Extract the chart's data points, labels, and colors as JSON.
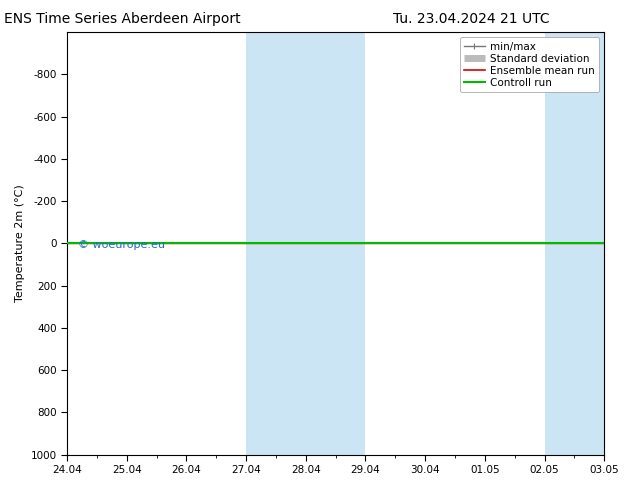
{
  "title_left": "ENS Time Series Aberdeen Airport",
  "title_right": "Tu. 23.04.2024 21 UTC",
  "ylabel": "Temperature 2m (°C)",
  "watermark": "© woeurope.eu",
  "ylim_top": -1000,
  "ylim_bottom": 1000,
  "ytick_values": [
    -800,
    -600,
    -400,
    -200,
    0,
    200,
    400,
    600,
    800,
    1000
  ],
  "x_tick_labels": [
    "24.04",
    "25.04",
    "26.04",
    "27.04",
    "28.04",
    "29.04",
    "30.04",
    "01.05",
    "02.05",
    "03.05"
  ],
  "x_tick_positions": [
    0,
    1,
    2,
    3,
    4,
    5,
    6,
    7,
    8,
    9
  ],
  "x_min": 0,
  "x_max": 9,
  "shaded_regions": [
    {
      "x_start": 3.0,
      "x_end": 5.0
    },
    {
      "x_start": 8.0,
      "x_end": 9.0
    }
  ],
  "shaded_color": "#cce5f5",
  "green_line_y": 0,
  "green_line_color": "#00bb00",
  "red_line_color": "#dd0000",
  "legend_entries": [
    {
      "label": "min/max",
      "color": "#777777",
      "lw": 1.0,
      "style": "minmax"
    },
    {
      "label": "Standard deviation",
      "color": "#bbbbbb",
      "lw": 5,
      "style": "thick"
    },
    {
      "label": "Ensemble mean run",
      "color": "#dd0000",
      "lw": 1.2,
      "style": "line"
    },
    {
      "label": "Controll run",
      "color": "#00bb00",
      "lw": 1.5,
      "style": "line"
    }
  ],
  "background_color": "#ffffff",
  "spine_color": "#000000",
  "font_size_title": 10,
  "font_size_axis": 8,
  "font_size_tick": 7.5,
  "font_size_legend": 7.5,
  "font_size_watermark": 8,
  "watermark_color": "#1a6fc4",
  "fig_width": 6.34,
  "fig_height": 4.9,
  "dpi": 100
}
